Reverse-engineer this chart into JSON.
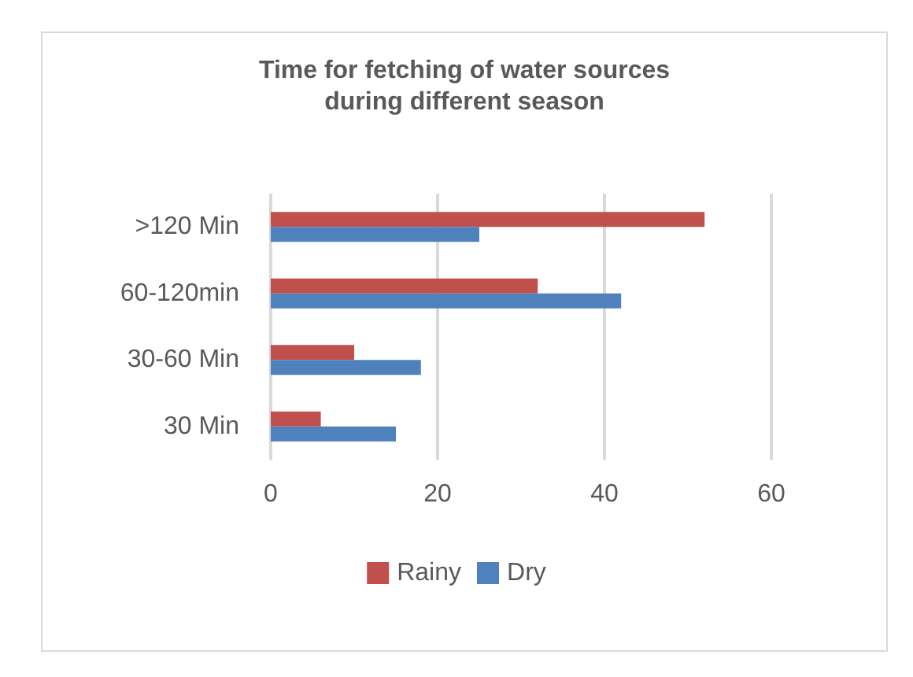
{
  "chart_data": {
    "type": "bar",
    "orientation": "horizontal",
    "title": "Time for fetching of water sources\nduring different season",
    "categories": [
      ">120 Min",
      "60-120min",
      "30-60 Min",
      "30 Min"
    ],
    "series": [
      {
        "name": "Rainy",
        "color": "#c0504d",
        "values": [
          52,
          32,
          10,
          6
        ]
      },
      {
        "name": "Dry",
        "color": "#4f81bd",
        "values": [
          25,
          42,
          18,
          15
        ]
      }
    ],
    "xlim": [
      0,
      60
    ],
    "xticks": [
      0,
      20,
      40,
      60
    ],
    "grid": "x",
    "legend": "bottom"
  }
}
